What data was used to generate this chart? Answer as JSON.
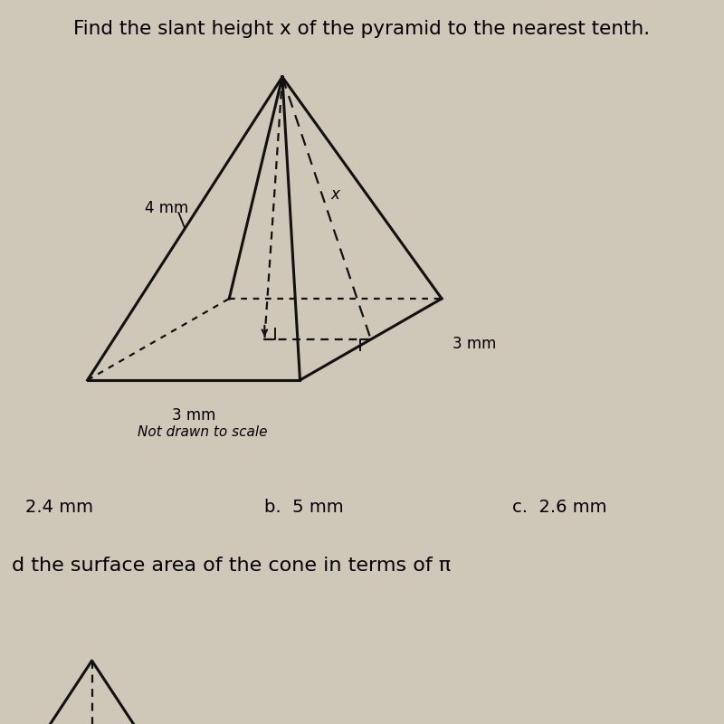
{
  "bg_color": "#d8d0c0",
  "title": "Find the slant height x of the pyramid to the nearest tenth.",
  "title_fontsize": 15.5,
  "label_4mm": "4 mm",
  "label_3mm_bottom": "3 mm",
  "label_3mm_right": "3 mm",
  "label_x": "x",
  "note": "Not drawn to scale",
  "answer_a": "2.4 mm",
  "answer_b": "b.  5 mm",
  "answer_c": "c.  2.6 mm",
  "next_question": "d the surface area of the cone in terms of π",
  "line_color": "#111111",
  "bg_color_fig": "#cfc8b8"
}
